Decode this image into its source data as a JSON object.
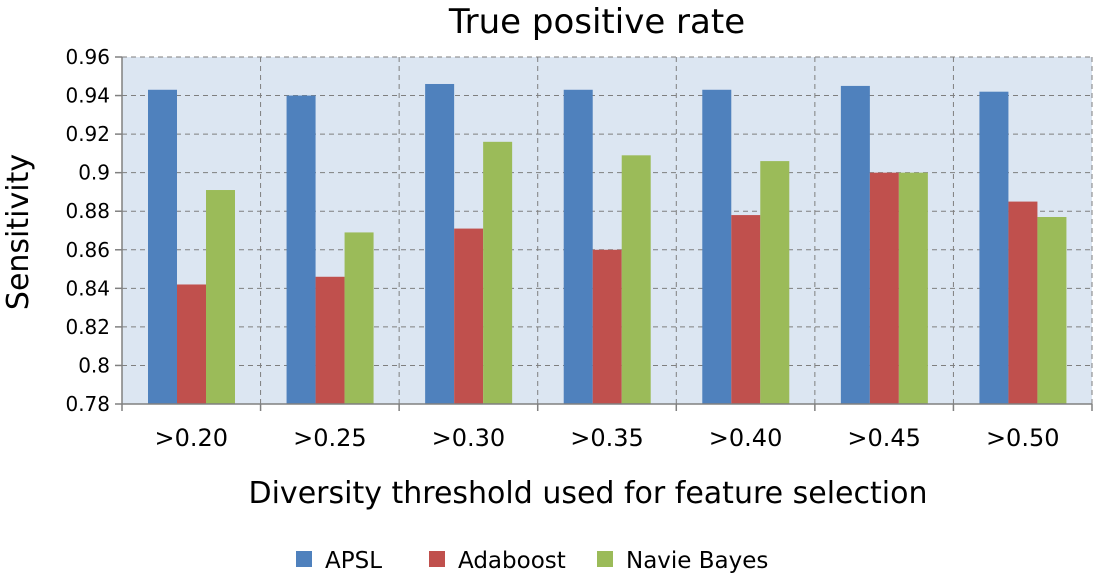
{
  "chart_data": {
    "type": "bar",
    "title": "True positive rate",
    "xlabel": "Diversity threshold used for feature selection",
    "ylabel": "Sensitivity",
    "ylim": [
      0.78,
      0.96
    ],
    "yticks": [
      "0.78",
      "0.8",
      "0.82",
      "0.84",
      "0.86",
      "0.88",
      "0.9",
      "0.92",
      "0.94",
      "0.96"
    ],
    "categories": [
      ">0.20",
      ">0.25",
      ">0.30",
      ">0.35",
      ">0.40",
      ">0.45",
      ">0.50"
    ],
    "series": [
      {
        "name": "APSL",
        "color": "#4F81BD",
        "values": [
          0.943,
          0.94,
          0.946,
          0.943,
          0.943,
          0.945,
          0.942
        ]
      },
      {
        "name": "Adaboost",
        "color": "#C0504D",
        "values": [
          0.842,
          0.846,
          0.871,
          0.86,
          0.878,
          0.9,
          0.885
        ]
      },
      {
        "name": "Navie Bayes",
        "color": "#9BBB59",
        "values": [
          0.891,
          0.869,
          0.916,
          0.909,
          0.906,
          0.9,
          0.877
        ]
      }
    ],
    "grid": true,
    "legend": "bottom"
  },
  "colors": {
    "plot_background": "#DCE6F2",
    "grid": "#7F7F7F"
  }
}
